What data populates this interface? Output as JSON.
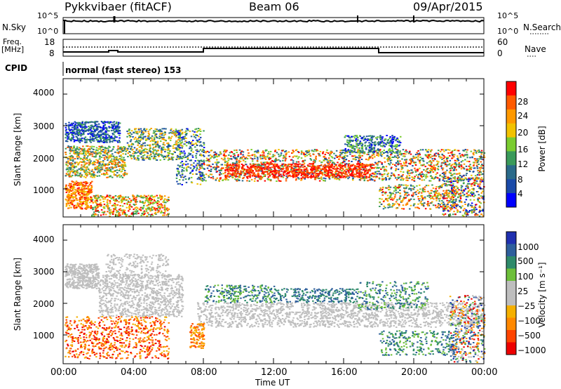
{
  "header": {
    "site": "Pykkvibaer (fitACF)",
    "beam": "Beam 06",
    "date": "09/Apr/2015"
  },
  "strip_labels": {
    "nsky": "N.Sky",
    "nsearch": "N.Search",
    "freq_line1": "Freq.",
    "freq_line2": "[MHz]",
    "nave": "Nave",
    "cpid": "CPID",
    "cpid_value": "normal (fast stereo) 153"
  },
  "strip_ticks": {
    "noise_left": [
      "10^5",
      "10^0"
    ],
    "noise_right": [
      "10^5",
      "10^0"
    ],
    "freq_left": [
      "18",
      "8"
    ],
    "nave_right": [
      "60",
      "0"
    ]
  },
  "chart_data": [
    {
      "type": "heatmap",
      "panel": "power",
      "ylabel": "Slant Range [km]",
      "y_ticks": [
        1000,
        2000,
        3000,
        4000
      ],
      "ylim": [
        180,
        4600
      ],
      "colorbar": {
        "label": "Power [dB]",
        "ticks": [
          "28",
          "24",
          "20",
          "16",
          "12",
          "8",
          "4"
        ],
        "colors": [
          "#ff0000",
          "#ff5a00",
          "#ff9900",
          "#f2c200",
          "#7acc30",
          "#3a9a5a",
          "#2a6a8a",
          "#1a4aa8",
          "#0000ff"
        ]
      }
    },
    {
      "type": "heatmap",
      "panel": "velocity",
      "ylabel": "Slant Range [km]",
      "y_ticks": [
        1000,
        2000,
        3000,
        4000
      ],
      "ylim": [
        180,
        4600
      ],
      "colorbar": {
        "label": "Velocity [m s⁻¹]",
        "ticks": [
          "1000",
          "500",
          "100",
          "25",
          "−25",
          "−100",
          "−500",
          "−1000"
        ],
        "colors": [
          "#2030b0",
          "#2e5f9c",
          "#2e8a6a",
          "#6dbf3a",
          "#bebebe",
          "#bebebe",
          "#f5b000",
          "#ff8800",
          "#ff4400",
          "#ee0000"
        ]
      }
    }
  ],
  "time_axis": {
    "xlabel": "Time UT",
    "ticks": [
      "00:00",
      "04:00",
      "08:00",
      "12:00",
      "16:00",
      "20:00",
      "00:00"
    ]
  }
}
